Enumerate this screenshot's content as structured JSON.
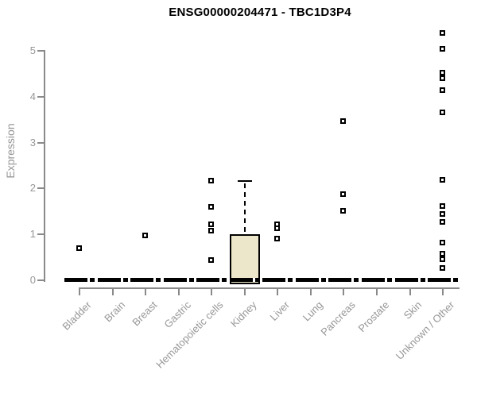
{
  "title": "ENSG00000204471 - TBC1D3P4",
  "chart_data": {
    "type": "boxplot",
    "title": "ENSG00000204471 - TBC1D3P4",
    "xlabel": "",
    "ylabel": "Expression",
    "ylim": [
      0,
      5.5
    ],
    "yticks": [
      "0",
      "1",
      "2",
      "3",
      "4",
      "5"
    ],
    "grid": false,
    "legend": false,
    "categories": [
      "Bladder",
      "Brain",
      "Breast",
      "Gastric",
      "Hematopoietic cells",
      "Kidney",
      "Liver",
      "Lung",
      "Pancreas",
      "Prostate",
      "Skin",
      "Unknown / Other"
    ],
    "boxes": [
      {
        "category": "Bladder",
        "q1": 0,
        "median": 0,
        "q3": 0,
        "whisker_low": 0,
        "whisker_high": 0,
        "outliers": [
          0.69
        ]
      },
      {
        "category": "Brain",
        "q1": 0,
        "median": 0,
        "q3": 0,
        "whisker_low": 0,
        "whisker_high": 0,
        "outliers": []
      },
      {
        "category": "Breast",
        "q1": 0,
        "median": 0,
        "q3": 0,
        "whisker_low": 0,
        "whisker_high": 0,
        "outliers": [
          0.97
        ]
      },
      {
        "category": "Gastric",
        "q1": 0,
        "median": 0,
        "q3": 0,
        "whisker_low": 0,
        "whisker_high": 0,
        "outliers": []
      },
      {
        "category": "Hematopoietic cells",
        "q1": 0,
        "median": 0,
        "q3": 0,
        "whisker_low": 0,
        "whisker_high": 0,
        "outliers": [
          2.16,
          1.59,
          1.21,
          1.07,
          0.43
        ]
      },
      {
        "category": "Kidney",
        "q1": 0,
        "median": 0,
        "q3": 0.97,
        "whisker_low": 0,
        "whisker_high": 2.17,
        "outliers": []
      },
      {
        "category": "Liver",
        "q1": 0,
        "median": 0,
        "q3": 0,
        "whisker_low": 0,
        "whisker_high": 0,
        "outliers": [
          1.21,
          1.12,
          0.9
        ]
      },
      {
        "category": "Lung",
        "q1": 0,
        "median": 0,
        "q3": 0,
        "whisker_low": 0,
        "whisker_high": 0,
        "outliers": []
      },
      {
        "category": "Pancreas",
        "q1": 0,
        "median": 0,
        "q3": 0,
        "whisker_low": 0,
        "whisker_high": 0,
        "outliers": [
          3.46,
          1.87,
          1.5
        ]
      },
      {
        "category": "Prostate",
        "q1": 0,
        "median": 0,
        "q3": 0,
        "whisker_low": 0,
        "whisker_high": 0,
        "outliers": []
      },
      {
        "category": "Skin",
        "q1": 0,
        "median": 0,
        "q3": 0,
        "whisker_low": 0,
        "whisker_high": 0,
        "outliers": []
      },
      {
        "category": "Unknown / Other",
        "q1": 0,
        "median": 0,
        "q3": 0,
        "whisker_low": 0,
        "whisker_high": 0,
        "outliers": [
          5.38,
          5.03,
          4.51,
          4.39,
          4.13,
          3.65,
          2.18,
          1.61,
          1.44,
          1.26,
          0.81,
          0.57,
          0.45,
          0.26
        ]
      }
    ],
    "colors": {
      "box_fill": "#ece7cb",
      "box_border": "#000000",
      "median": "#000000",
      "whisker": "#000000",
      "outlier": "#000000",
      "axis": "#8a8a8a",
      "tick_label": "#979797",
      "title": "#000000",
      "background": "#ffffff"
    }
  }
}
